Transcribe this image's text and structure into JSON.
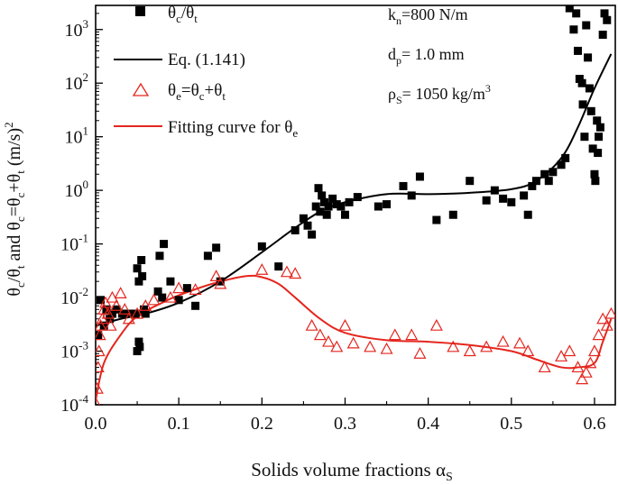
{
  "chart_data": {
    "type": "scatter",
    "title": "",
    "xlabel": "Solids volume fractions αs",
    "ylabel": "θc/θt and θc=θc+θt (m/s)2",
    "xlim": [
      0.0,
      0.625
    ],
    "ylim_log10": [
      -4,
      3.45
    ],
    "yscale": "log",
    "xticks": [
      0.0,
      0.1,
      0.2,
      0.3,
      0.4,
      0.5,
      0.6
    ],
    "xtick_labels": [
      "0.0",
      "0.1",
      "0.2",
      "0.3",
      "0.4",
      "0.5",
      "0.6"
    ],
    "yticks_exp": [
      -4,
      -3,
      -2,
      -1,
      0,
      1,
      2,
      3
    ],
    "ytick_mantissa": "10",
    "legend_position": "top-left",
    "annotations": [
      {
        "main": "k",
        "sub": "n",
        "rest": "=800 N/m"
      },
      {
        "main": "d",
        "sub": "p",
        "rest": "= 1.0 mm"
      },
      {
        "main": "ρ",
        "sub": "S",
        "rest": "= 1050 kg/m",
        "sup": "3"
      }
    ],
    "series": [
      {
        "name": "θc/θt",
        "kind": "scatter",
        "marker": "square-filled",
        "color": "#000000",
        "points": [
          [
            0.003,
            0.002
          ],
          [
            0.006,
            0.009
          ],
          [
            0.01,
            0.003
          ],
          [
            0.013,
            0.006
          ],
          [
            0.017,
            0.004
          ],
          [
            0.02,
            0.005
          ],
          [
            0.025,
            0.006
          ],
          [
            0.032,
            0.005
          ],
          [
            0.04,
            0.005
          ],
          [
            0.048,
            0.005
          ],
          [
            0.05,
            0.001
          ],
          [
            0.052,
            0.0015
          ],
          [
            0.053,
            0.0012
          ],
          [
            0.05,
            0.035
          ],
          [
            0.052,
            0.02
          ],
          [
            0.055,
            0.05
          ],
          [
            0.056,
            0.025
          ],
          [
            0.058,
            0.006
          ],
          [
            0.06,
            0.005
          ],
          [
            0.075,
            0.013
          ],
          [
            0.08,
            0.01
          ],
          [
            0.077,
            0.06
          ],
          [
            0.082,
            0.1
          ],
          [
            0.09,
            0.02
          ],
          [
            0.1,
            0.009
          ],
          [
            0.11,
            0.015
          ],
          [
            0.12,
            0.007
          ],
          [
            0.135,
            0.06
          ],
          [
            0.145,
            0.085
          ],
          [
            0.15,
            0.02
          ],
          [
            0.2,
            0.09
          ],
          [
            0.22,
            0.038
          ],
          [
            0.24,
            0.18
          ],
          [
            0.25,
            0.3
          ],
          [
            0.255,
            0.22
          ],
          [
            0.26,
            0.15
          ],
          [
            0.265,
            0.5
          ],
          [
            0.268,
            1.1
          ],
          [
            0.27,
            0.4
          ],
          [
            0.272,
            0.8
          ],
          [
            0.275,
            0.6
          ],
          [
            0.278,
            0.35
          ],
          [
            0.28,
            0.5
          ],
          [
            0.285,
            0.7
          ],
          [
            0.29,
            0.55
          ],
          [
            0.295,
            0.5
          ],
          [
            0.3,
            0.35
          ],
          [
            0.305,
            0.6
          ],
          [
            0.315,
            0.75
          ],
          [
            0.34,
            0.5
          ],
          [
            0.35,
            0.55
          ],
          [
            0.37,
            1.2
          ],
          [
            0.38,
            0.8
          ],
          [
            0.39,
            1.8
          ],
          [
            0.41,
            0.28
          ],
          [
            0.43,
            0.35
          ],
          [
            0.45,
            1.5
          ],
          [
            0.47,
            0.65
          ],
          [
            0.48,
            1.0
          ],
          [
            0.49,
            0.7
          ],
          [
            0.5,
            0.6
          ],
          [
            0.52,
            0.35
          ],
          [
            0.515,
            0.8
          ],
          [
            0.525,
            1.2
          ],
          [
            0.53,
            1.5
          ],
          [
            0.54,
            2.0
          ],
          [
            0.545,
            1.5
          ],
          [
            0.55,
            2.2
          ],
          [
            0.56,
            3.0
          ],
          [
            0.565,
            4.0
          ],
          [
            0.57,
            2500
          ],
          [
            0.575,
            1000
          ],
          [
            0.578,
            2000
          ],
          [
            0.58,
            400
          ],
          [
            0.582,
            120
          ],
          [
            0.585,
            100
          ],
          [
            0.586,
            40
          ],
          [
            0.588,
            10
          ],
          [
            0.59,
            1200
          ],
          [
            0.592,
            300
          ],
          [
            0.594,
            80
          ],
          [
            0.596,
            30
          ],
          [
            0.598,
            6
          ],
          [
            0.6,
            2
          ],
          [
            0.601,
            1.5
          ],
          [
            0.603,
            20
          ],
          [
            0.604,
            5
          ],
          [
            0.605,
            10
          ],
          [
            0.607,
            15
          ],
          [
            0.61,
            800
          ],
          [
            0.612,
            2000
          ],
          [
            0.615,
            1500
          ]
        ]
      },
      {
        "name": "Eq. (1.141)",
        "kind": "line",
        "color": "#000000",
        "points": [
          [
            0.0,
            0.003
          ],
          [
            0.03,
            0.004
          ],
          [
            0.06,
            0.005
          ],
          [
            0.1,
            0.008
          ],
          [
            0.15,
            0.02
          ],
          [
            0.2,
            0.07
          ],
          [
            0.24,
            0.2
          ],
          [
            0.27,
            0.4
          ],
          [
            0.3,
            0.6
          ],
          [
            0.35,
            0.85
          ],
          [
            0.4,
            0.85
          ],
          [
            0.45,
            0.9
          ],
          [
            0.5,
            1.05
          ],
          [
            0.53,
            1.5
          ],
          [
            0.56,
            4
          ],
          [
            0.58,
            15
          ],
          [
            0.6,
            80
          ],
          [
            0.62,
            350
          ]
        ]
      },
      {
        "name": "θe=θc+θt",
        "kind": "scatter",
        "marker": "triangle-open",
        "color": "#e4261e",
        "points": [
          [
            0.001,
            0.0001
          ],
          [
            0.002,
            0.0002
          ],
          [
            0.003,
            0.0005
          ],
          [
            0.004,
            0.001
          ],
          [
            0.005,
            0.002
          ],
          [
            0.006,
            0.003
          ],
          [
            0.008,
            0.004
          ],
          [
            0.01,
            0.006
          ],
          [
            0.012,
            0.008
          ],
          [
            0.015,
            0.005
          ],
          [
            0.018,
            0.003
          ],
          [
            0.02,
            0.01
          ],
          [
            0.025,
            0.007
          ],
          [
            0.03,
            0.012
          ],
          [
            0.035,
            0.006
          ],
          [
            0.04,
            0.004
          ],
          [
            0.05,
            0.005
          ],
          [
            0.06,
            0.007
          ],
          [
            0.07,
            0.009
          ],
          [
            0.09,
            0.01
          ],
          [
            0.1,
            0.015
          ],
          [
            0.12,
            0.014
          ],
          [
            0.145,
            0.025
          ],
          [
            0.15,
            0.018
          ],
          [
            0.2,
            0.033
          ],
          [
            0.23,
            0.03
          ],
          [
            0.24,
            0.028
          ],
          [
            0.26,
            0.003
          ],
          [
            0.27,
            0.002
          ],
          [
            0.28,
            0.0015
          ],
          [
            0.29,
            0.0012
          ],
          [
            0.3,
            0.003
          ],
          [
            0.31,
            0.0014
          ],
          [
            0.33,
            0.0012
          ],
          [
            0.35,
            0.0011
          ],
          [
            0.36,
            0.002
          ],
          [
            0.38,
            0.002
          ],
          [
            0.39,
            0.0009
          ],
          [
            0.41,
            0.003
          ],
          [
            0.43,
            0.0012
          ],
          [
            0.45,
            0.001
          ],
          [
            0.47,
            0.0012
          ],
          [
            0.49,
            0.0015
          ],
          [
            0.51,
            0.0014
          ],
          [
            0.52,
            0.001
          ],
          [
            0.54,
            0.0005
          ],
          [
            0.56,
            0.0008
          ],
          [
            0.57,
            0.001
          ],
          [
            0.58,
            0.0005
          ],
          [
            0.585,
            0.0003
          ],
          [
            0.59,
            0.0004
          ],
          [
            0.595,
            0.0006
          ],
          [
            0.6,
            0.001
          ],
          [
            0.605,
            0.002
          ],
          [
            0.61,
            0.004
          ],
          [
            0.615,
            0.003
          ],
          [
            0.62,
            0.005
          ]
        ]
      },
      {
        "name": "Fitting curve for θe",
        "kind": "line",
        "color": "#e4261e",
        "points": [
          [
            0.0,
            0.00012
          ],
          [
            0.01,
            0.0006
          ],
          [
            0.03,
            0.002
          ],
          [
            0.05,
            0.0045
          ],
          [
            0.08,
            0.008
          ],
          [
            0.1,
            0.011
          ],
          [
            0.14,
            0.018
          ],
          [
            0.18,
            0.025
          ],
          [
            0.2,
            0.024
          ],
          [
            0.22,
            0.018
          ],
          [
            0.24,
            0.01
          ],
          [
            0.27,
            0.004
          ],
          [
            0.3,
            0.0022
          ],
          [
            0.35,
            0.0016
          ],
          [
            0.4,
            0.0015
          ],
          [
            0.45,
            0.0013
          ],
          [
            0.5,
            0.001
          ],
          [
            0.53,
            0.0007
          ],
          [
            0.56,
            0.0005
          ],
          [
            0.58,
            0.0005
          ],
          [
            0.6,
            0.0006
          ],
          [
            0.61,
            0.0015
          ],
          [
            0.62,
            0.004
          ]
        ]
      }
    ]
  }
}
